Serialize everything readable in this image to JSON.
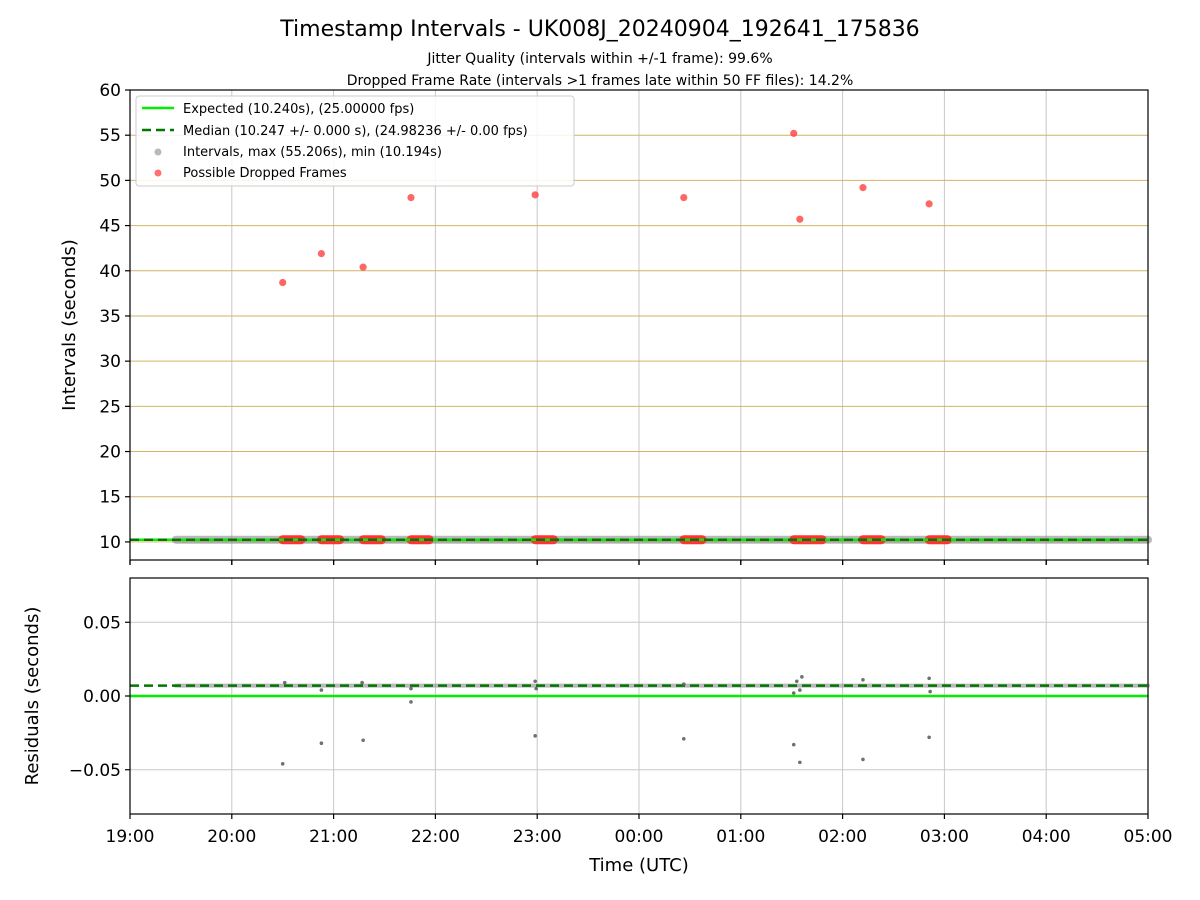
{
  "figure": {
    "title": "Timestamp Intervals - UK008J_20240904_192641_175836",
    "subtitle_1": "Jitter Quality (intervals within +/-1 frame): 99.6%",
    "subtitle_2": "Dropped Frame Rate (intervals >1 frames late within 50 FF files): 14.2%",
    "xlabel": "Time (UTC)",
    "x_ticks": [
      "19:00",
      "20:00",
      "21:00",
      "22:00",
      "23:00",
      "00:00",
      "01:00",
      "02:00",
      "03:00",
      "04:00",
      "05:00"
    ]
  },
  "colors": {
    "expected": "#00ee00",
    "median": "#007700",
    "intervals": "#808080",
    "dropped": "#ff3333",
    "hgrid_top": "#d4b26a",
    "grid": "#c8c8c8"
  },
  "chart_data": [
    {
      "type": "scatter",
      "title": "",
      "xlabel": "",
      "ylabel": "Intervals (seconds)",
      "x_unit": "hours after 19:00 UTC",
      "xlim": [
        0,
        10
      ],
      "ylim": [
        8,
        60
      ],
      "yticks": [
        10,
        15,
        20,
        25,
        30,
        35,
        40,
        45,
        50,
        55,
        60
      ],
      "grid": "on",
      "legend_position": "top-left",
      "legend": [
        "Expected (10.240s), (25.00000 fps)",
        "Median (10.247 +/- 0.000 s), (24.98236 +/- 0.00 fps)",
        "Intervals, max (55.206s), min (10.194s)",
        "Possible Dropped Frames"
      ],
      "series": [
        {
          "name": "Expected (10.240s), (25.00000 fps)",
          "kind": "hline",
          "y": 10.24
        },
        {
          "name": "Median (10.247 +/- 0.000 s), (24.98236 +/- 0.00 fps)",
          "kind": "hline",
          "y": 10.247
        },
        {
          "name": "Intervals, max (55.206s), min (10.194s)",
          "kind": "band",
          "x_range": [
            0.45,
            10.0
          ],
          "y": 10.247
        },
        {
          "name": "Possible Dropped Frames",
          "kind": "scatter",
          "points": [
            {
              "x": 1.5,
              "y": 38.7
            },
            {
              "x": 1.88,
              "y": 41.9
            },
            {
              "x": 2.29,
              "y": 40.4
            },
            {
              "x": 2.76,
              "y": 48.1
            },
            {
              "x": 3.98,
              "y": 48.4
            },
            {
              "x": 5.44,
              "y": 48.1
            },
            {
              "x": 6.52,
              "y": 55.2
            },
            {
              "x": 6.58,
              "y": 45.7
            },
            {
              "x": 7.2,
              "y": 49.2
            },
            {
              "x": 7.85,
              "y": 47.4
            }
          ],
          "clusters_at_baseline": [
            [
              1.5,
              1.68
            ],
            [
              1.88,
              2.06
            ],
            [
              2.29,
              2.47
            ],
            [
              2.76,
              2.94
            ],
            [
              3.98,
              4.16
            ],
            [
              5.44,
              5.62
            ],
            [
              6.52,
              6.8
            ],
            [
              7.2,
              7.38
            ],
            [
              7.85,
              8.03
            ]
          ]
        }
      ]
    },
    {
      "type": "scatter",
      "title": "",
      "xlabel": "Time (UTC)",
      "ylabel": "Residuals (seconds)",
      "x_unit": "hours after 19:00 UTC",
      "xlim": [
        0,
        10
      ],
      "ylim": [
        -0.08,
        0.08
      ],
      "yticks": [
        -0.05,
        0.0,
        0.05
      ],
      "ytick_labels": [
        "−0.05",
        "0.00",
        "0.05"
      ],
      "grid": "on",
      "series": [
        {
          "name": "Expected (10.240s), (25.00000 fps)",
          "kind": "hline",
          "y": 0.0
        },
        {
          "name": "Median (10.247 +/- 0.000 s), (24.98236 +/- 0.00 fps)",
          "kind": "hline",
          "y": 0.007
        },
        {
          "name": "Intervals, max (55.206s), min (10.194s)",
          "kind": "band",
          "x_range": [
            0.45,
            10.0
          ],
          "y": 0.007
        },
        {
          "name": "Intervals, max (55.206s), min (10.194s)",
          "kind": "scatter",
          "points": [
            {
              "x": 1.5,
              "y": -0.046
            },
            {
              "x": 1.88,
              "y": -0.032
            },
            {
              "x": 2.29,
              "y": -0.03
            },
            {
              "x": 2.76,
              "y": -0.004
            },
            {
              "x": 3.98,
              "y": -0.027
            },
            {
              "x": 5.44,
              "y": -0.029
            },
            {
              "x": 6.52,
              "y": -0.033
            },
            {
              "x": 6.58,
              "y": -0.045
            },
            {
              "x": 7.2,
              "y": -0.043
            },
            {
              "x": 7.85,
              "y": -0.028
            },
            {
              "x": 6.52,
              "y": 0.002
            },
            {
              "x": 6.58,
              "y": 0.004
            },
            {
              "x": 6.6,
              "y": 0.013
            },
            {
              "x": 6.55,
              "y": 0.01
            },
            {
              "x": 7.2,
              "y": 0.011
            },
            {
              "x": 7.85,
              "y": 0.012
            },
            {
              "x": 7.86,
              "y": 0.003
            },
            {
              "x": 1.88,
              "y": 0.004
            },
            {
              "x": 2.76,
              "y": 0.005
            },
            {
              "x": 3.98,
              "y": 0.01
            },
            {
              "x": 3.99,
              "y": 0.005
            },
            {
              "x": 1.52,
              "y": 0.009
            },
            {
              "x": 2.28,
              "y": 0.009
            },
            {
              "x": 5.44,
              "y": 0.008
            }
          ]
        }
      ]
    }
  ]
}
